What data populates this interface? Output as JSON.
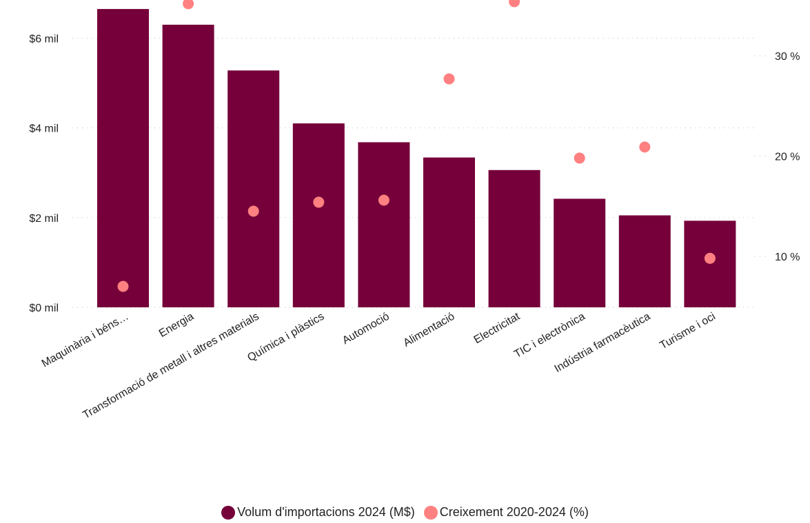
{
  "chart_data": {
    "type": "bar",
    "categories": [
      "Maquinària i béns…",
      "Energia",
      "Transformació de metall i altres materials",
      "Química i plàstics",
      "Automoció",
      "Alimentació",
      "Electricitat",
      "TIC i electrònica",
      "Indústria farmacèutica",
      "Turisme i oci"
    ],
    "series": [
      {
        "name": "Volum d'importacions 2024 (M$)",
        "type": "bar",
        "axis": "left",
        "color": "#75003a",
        "values": [
          6650,
          6300,
          5280,
          4100,
          3680,
          3340,
          3060,
          2420,
          2050,
          1930
        ]
      },
      {
        "name": "Creixement 2020-2024 (%)",
        "type": "scatter",
        "axis": "right",
        "color": "#ff8080",
        "values": [
          7.0,
          35.2,
          14.5,
          15.4,
          15.6,
          27.7,
          35.4,
          19.8,
          20.9,
          9.8
        ]
      }
    ],
    "y_left": {
      "ticks": [
        0,
        2000,
        4000,
        6000
      ],
      "tick_labels": [
        "$0 mil",
        "$2 mil",
        "$4 mil",
        "$6 mil"
      ],
      "range": [
        0,
        6700
      ]
    },
    "y_right": {
      "ticks": [
        10,
        20,
        30
      ],
      "tick_labels": [
        "10 %",
        "20 %",
        "30 %"
      ],
      "range": [
        5.0,
        36.0
      ]
    },
    "grid": true,
    "legend_position": "bottom"
  }
}
